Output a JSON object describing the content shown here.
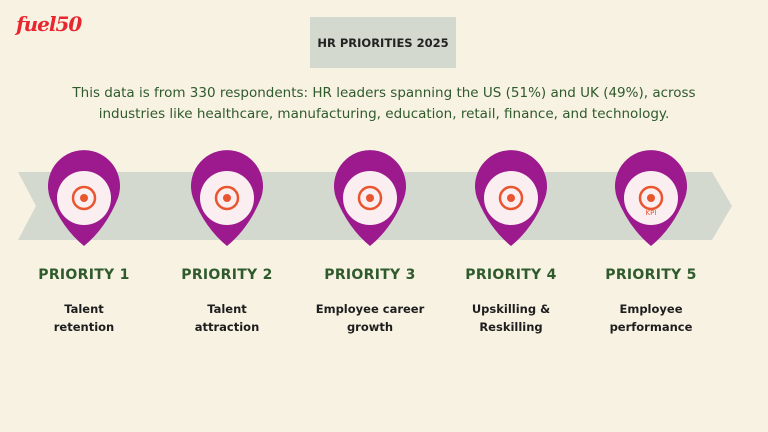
{
  "logo": "fuel50",
  "header": {
    "title": "HR PRIORITIES 2025"
  },
  "description": {
    "lines": [
      "This data is from 330 respondents: HR leaders spanning the US (51%) and UK (49%), across",
      "industries like healthcare, manufacturing, education, retail, finance, and technology."
    ]
  },
  "priorities": [
    {
      "label": "PRIORITY 1",
      "text": [
        "Talent",
        "retention"
      ]
    },
    {
      "label": "PRIORITY 2",
      "text": [
        "Talent",
        "attraction"
      ]
    },
    {
      "label": "PRIORITY 3",
      "text": [
        "Employee career",
        "growth"
      ]
    },
    {
      "label": "PRIORITY 4",
      "text": [
        "Upskilling &",
        "Reskilling"
      ]
    },
    {
      "label": "PRIORITY 5",
      "text": [
        "Employee",
        "performance"
      ],
      "icon_label": "KPI"
    }
  ]
}
